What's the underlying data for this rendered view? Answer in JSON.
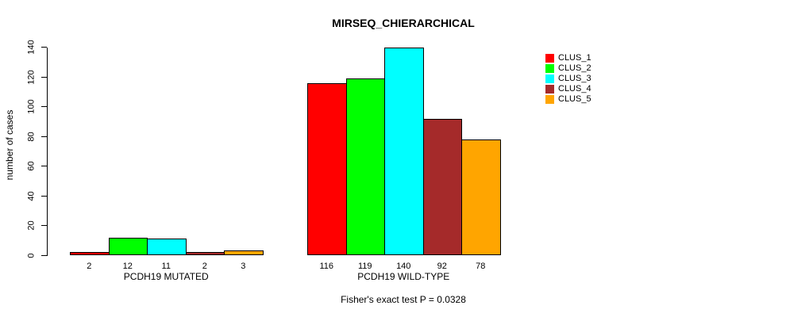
{
  "chart_data": {
    "type": "bar",
    "title": "MIRSEQ_CHIERARCHICAL",
    "subtitle": "Fisher's exact test P = 0.0328",
    "xlabel": "",
    "ylabel": "number of cases",
    "ylim": [
      0,
      140
    ],
    "yticks": [
      0,
      20,
      40,
      60,
      80,
      100,
      120,
      140
    ],
    "grid": false,
    "legend_position": "right",
    "categories": [
      "PCDH19 MUTATED",
      "PCDH19 WILD-TYPE"
    ],
    "series": [
      {
        "name": "CLUS_1",
        "color": "#ff0000",
        "values": [
          2,
          116
        ]
      },
      {
        "name": "CLUS_2",
        "color": "#00ff00",
        "values": [
          12,
          119
        ]
      },
      {
        "name": "CLUS_3",
        "color": "#00ffff",
        "values": [
          11,
          140
        ]
      },
      {
        "name": "CLUS_4",
        "color": "#a52a2a",
        "values": [
          2,
          92
        ]
      },
      {
        "name": "CLUS_5",
        "color": "#ffa500",
        "values": [
          3,
          78
        ]
      }
    ],
    "bar_value_labels": [
      [
        "2",
        "12",
        "11",
        "2",
        "3"
      ],
      [
        "116",
        "119",
        "140",
        "92",
        "78"
      ]
    ],
    "legend_items": [
      {
        "label": "CLUS_1",
        "color": "#ff0000"
      },
      {
        "label": "CLUS_2",
        "color": "#00ff00"
      },
      {
        "label": "CLUS_3",
        "color": "#00ffff"
      },
      {
        "label": "CLUS_4",
        "color": "#a52a2a"
      },
      {
        "label": "CLUS_5",
        "color": "#ffa500"
      }
    ]
  }
}
